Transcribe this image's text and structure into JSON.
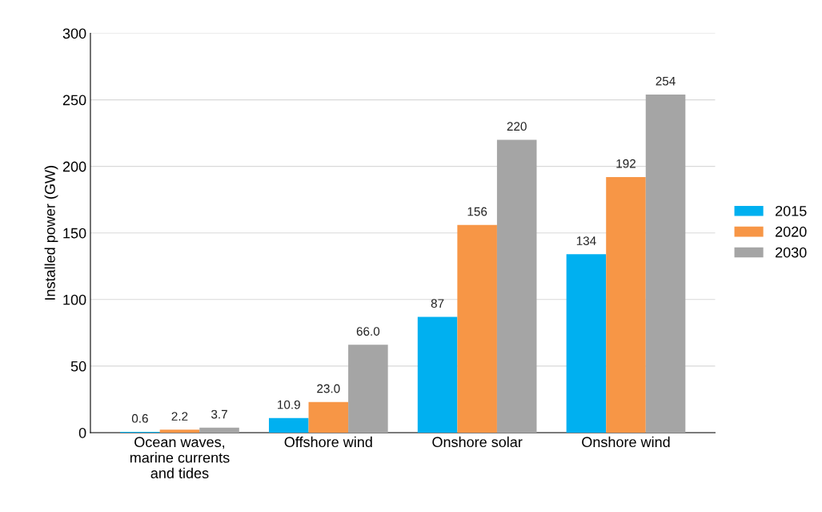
{
  "chart_data": {
    "type": "bar",
    "ylabel": "Installed power (GW)",
    "categories": [
      "Ocean waves,\nmarine currents\nand tides",
      "Offshore wind",
      "Onshore solar",
      "Onshore wind"
    ],
    "series": [
      {
        "name": "2015",
        "color": "#00b0f0",
        "values": [
          0.6,
          10.9,
          87,
          134
        ],
        "value_labels": [
          "0.6",
          "10.9",
          "87",
          "134"
        ]
      },
      {
        "name": "2020",
        "color": "#f79646",
        "values": [
          2.2,
          23.0,
          156,
          192
        ],
        "value_labels": [
          "2.2",
          "23.0",
          "156",
          "192"
        ]
      },
      {
        "name": "2030",
        "color": "#a5a5a5",
        "values": [
          3.7,
          66.0,
          220,
          254
        ],
        "value_labels": [
          "3.7",
          "66.0",
          "220",
          "254"
        ]
      }
    ],
    "ylim": [
      0,
      300
    ],
    "yticks": [
      0,
      50,
      100,
      150,
      200,
      250,
      300
    ],
    "grid": "y",
    "legend": "right"
  }
}
